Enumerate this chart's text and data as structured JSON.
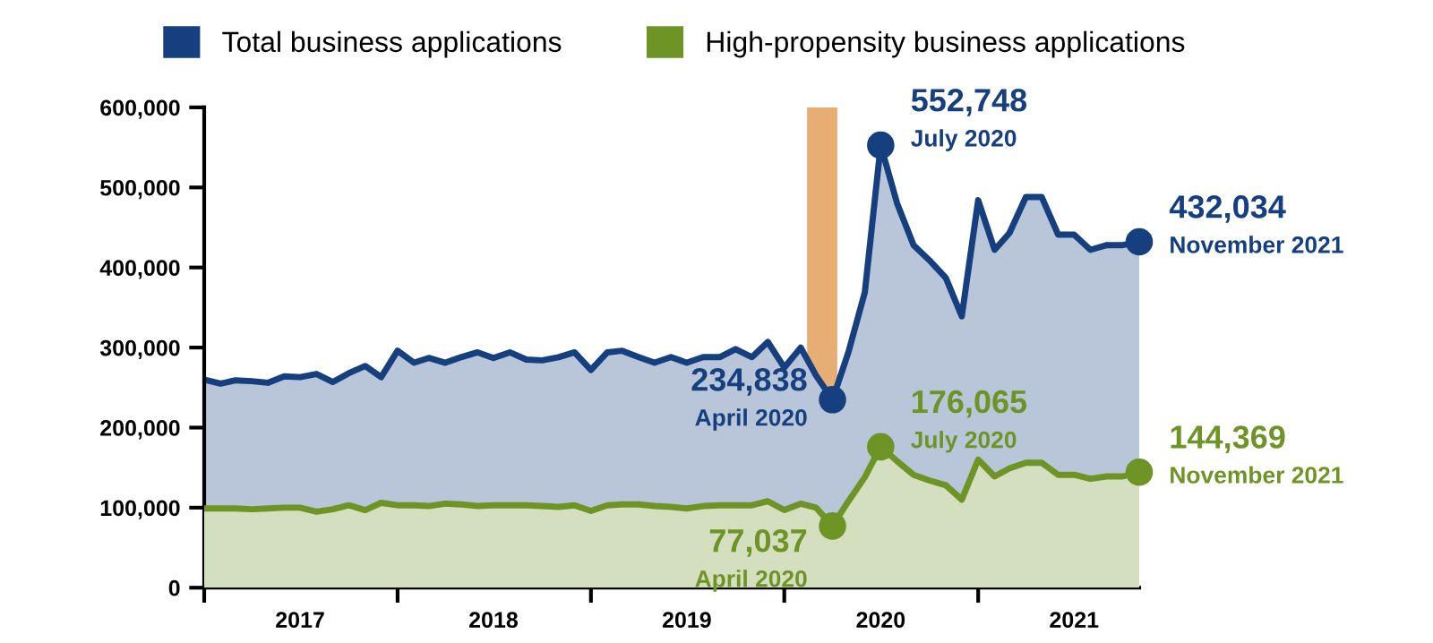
{
  "chart_data": {
    "type": "area",
    "x": [
      "2017-01",
      "2017-02",
      "2017-03",
      "2017-04",
      "2017-05",
      "2017-06",
      "2017-07",
      "2017-08",
      "2017-09",
      "2017-10",
      "2017-11",
      "2017-12",
      "2018-01",
      "2018-02",
      "2018-03",
      "2018-04",
      "2018-05",
      "2018-06",
      "2018-07",
      "2018-08",
      "2018-09",
      "2018-10",
      "2018-11",
      "2018-12",
      "2019-01",
      "2019-02",
      "2019-03",
      "2019-04",
      "2019-05",
      "2019-06",
      "2019-07",
      "2019-08",
      "2019-09",
      "2019-10",
      "2019-11",
      "2019-12",
      "2020-01",
      "2020-02",
      "2020-03",
      "2020-04",
      "2020-05",
      "2020-06",
      "2020-07",
      "2020-08",
      "2020-09",
      "2020-10",
      "2020-11",
      "2020-12",
      "2021-01",
      "2021-02",
      "2021-03",
      "2021-04",
      "2021-05",
      "2021-06",
      "2021-07",
      "2021-08",
      "2021-09",
      "2021-10",
      "2021-11"
    ],
    "series": [
      {
        "name": "Total business applications",
        "color": "#153f7e",
        "values": [
          260000,
          255000,
          259000,
          258000,
          256000,
          264000,
          263000,
          267000,
          257000,
          268000,
          277000,
          263000,
          296000,
          281000,
          287000,
          281000,
          288000,
          294000,
          287000,
          294000,
          285000,
          284000,
          288000,
          294000,
          272000,
          294000,
          296000,
          288000,
          281000,
          288000,
          281000,
          288000,
          288000,
          298000,
          288000,
          307000,
          275000,
          300000,
          265000,
          234838,
          294000,
          369000,
          552748,
          480000,
          428000,
          409000,
          387000,
          339000,
          484000,
          422000,
          443000,
          488000,
          488000,
          441000,
          441000,
          422000,
          428000,
          428000,
          432034
        ]
      },
      {
        "name": "High-propensity business applications",
        "color": "#6e9425",
        "values": [
          99000,
          99000,
          99000,
          98000,
          99000,
          100000,
          100000,
          95000,
          98000,
          103000,
          97000,
          106000,
          103000,
          103000,
          102000,
          105000,
          104000,
          102000,
          103000,
          103000,
          103000,
          102000,
          101000,
          103000,
          96000,
          103000,
          104000,
          104000,
          102000,
          101000,
          99000,
          102000,
          103000,
          103000,
          103000,
          108000,
          97000,
          105000,
          100000,
          77037,
          108000,
          138000,
          176065,
          158000,
          141000,
          134000,
          128000,
          110000,
          160000,
          139000,
          149000,
          156000,
          156000,
          141000,
          141000,
          136000,
          139000,
          139000,
          144369
        ]
      }
    ],
    "xlim": [
      "2017-01",
      "2021-11"
    ],
    "xticks": [
      {
        "value": "2017-01",
        "label": null
      },
      {
        "value": "2017-07",
        "label": "2017"
      },
      {
        "value": "2018-01",
        "label": null
      },
      {
        "value": "2018-07",
        "label": "2018"
      },
      {
        "value": "2019-01",
        "label": null
      },
      {
        "value": "2019-07",
        "label": "2019"
      },
      {
        "value": "2020-01",
        "label": null
      },
      {
        "value": "2020-07",
        "label": "2020"
      },
      {
        "value": "2021-01",
        "label": null
      },
      {
        "value": "2021-07",
        "label": "2021"
      }
    ],
    "ylim": [
      0,
      600000
    ],
    "yticks": [
      0,
      {
        "value": 100000,
        "label": "100,000"
      },
      {
        "value": 200000,
        "label": "200,000"
      },
      {
        "value": 300000,
        "label": "300,000"
      },
      {
        "value": 400000,
        "label": "400,000"
      },
      {
        "value": 500000,
        "label": "500,000"
      },
      {
        "value": 600000,
        "label": "600,000"
      }
    ],
    "bands": [
      {
        "axis": "x",
        "from": "2020-02-13",
        "to": "2020-04-10",
        "color": "#e8ad72"
      }
    ],
    "annotations": [
      {
        "text": "234,838\nApril 2020",
        "x": "2020-04",
        "y": 234838
      },
      {
        "text": "552,748\nJuly 2020",
        "x": "2020-07",
        "y": 552748
      },
      {
        "text": "432,034\nNovember 2021",
        "x": "2021-11",
        "y": 432034
      },
      {
        "text": "77,037\nApril 2020",
        "x": "2020-04",
        "y": 77037
      },
      {
        "text": "176,065\nJuly 2020",
        "x": "2020-07",
        "y": 176065
      },
      {
        "text": "144,369\nNovember 2021",
        "x": "2021-11",
        "y": 144369
      }
    ],
    "grid": false,
    "legend": "top left"
  }
}
